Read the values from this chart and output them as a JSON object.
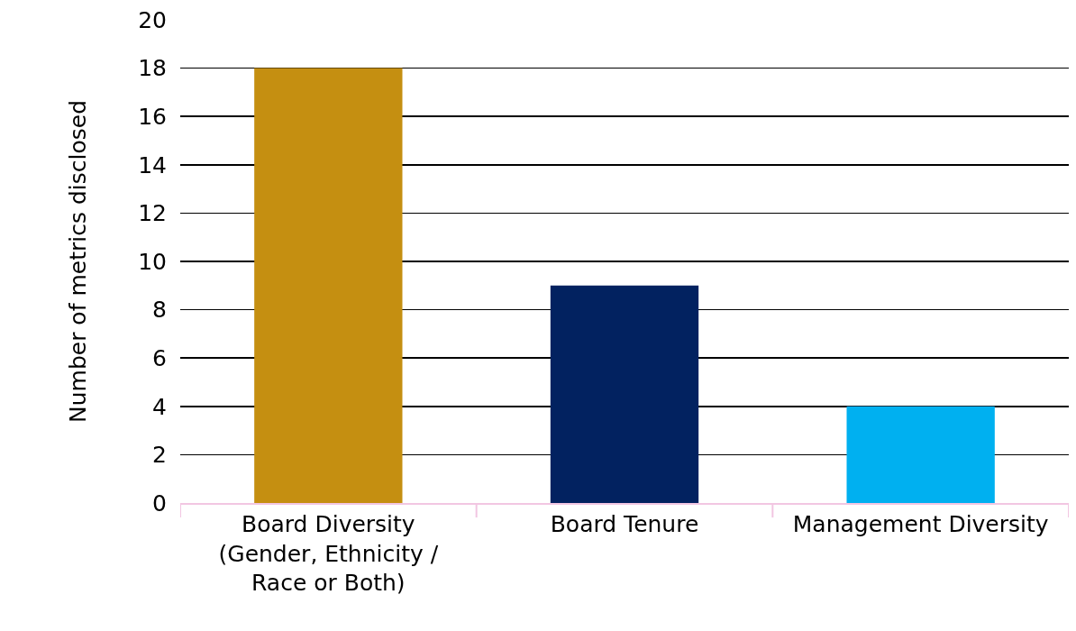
{
  "chart_data": {
    "type": "bar",
    "ylabel": "Number of metrics disclosed",
    "categories": [
      "Board Diversity (Gender, Ethnicity / Race or Both)",
      "Board Tenure",
      "Management Diversity"
    ],
    "values": [
      18,
      9,
      4
    ],
    "colors": [
      "#c58f11",
      "#022260",
      "#00b0f0"
    ],
    "ylim": [
      0,
      20
    ],
    "yticks": [
      0,
      2,
      4,
      6,
      8,
      10,
      12,
      14,
      16,
      18,
      20
    ],
    "grid": "y",
    "legend": false
  }
}
